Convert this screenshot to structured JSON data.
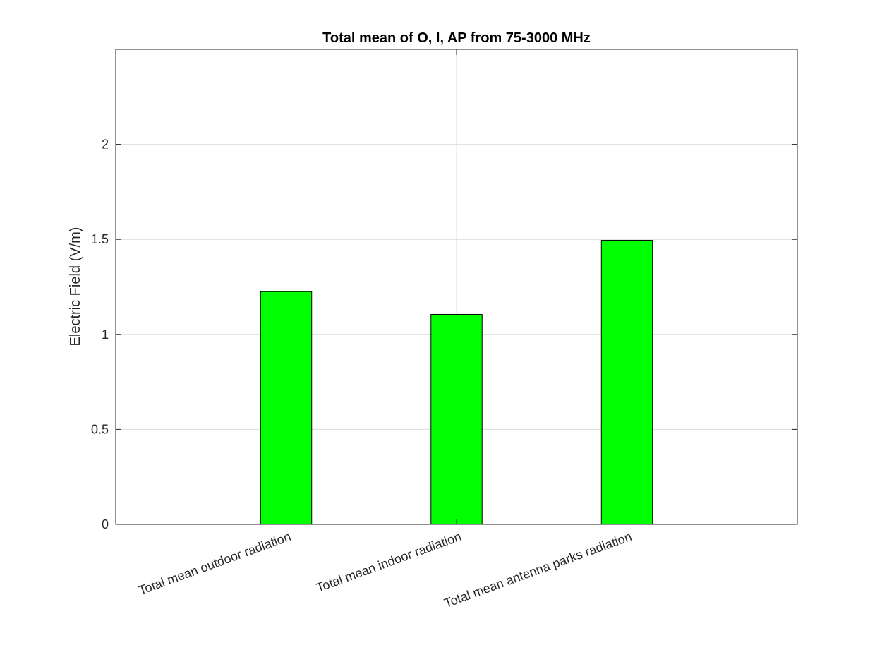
{
  "chart_data": {
    "type": "bar",
    "title": "Total mean of O, I, AP from 75-3000 MHz",
    "xlabel": "",
    "ylabel": "Electric Field (V/m)",
    "categories": [
      "Total mean outdoor radiation",
      "Total mean indoor radiation",
      "Total mean antenna parks radiation"
    ],
    "values": [
      1.225,
      1.105,
      1.495
    ],
    "ylim": [
      0,
      2.5
    ],
    "yticks": [
      0,
      0.5,
      1,
      1.5,
      2
    ],
    "ytick_labels": [
      "0",
      "0.5",
      "1",
      "1.5",
      "2"
    ],
    "grid": true,
    "legend": "none",
    "bar_color": "#00ff00",
    "bar_edge_color": "#000000"
  }
}
